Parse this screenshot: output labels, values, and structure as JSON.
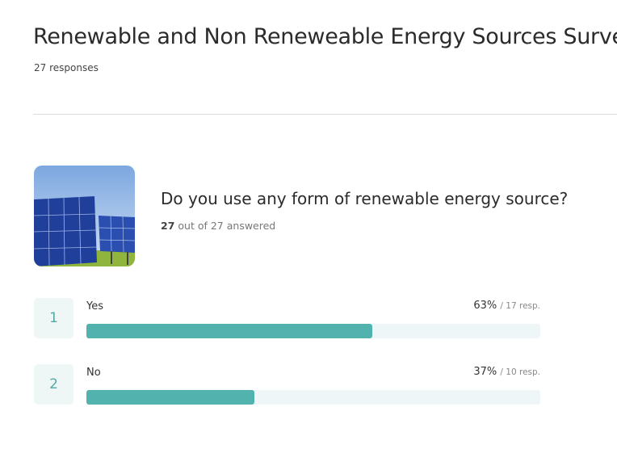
{
  "header": {
    "title": "Renewable and Non Reneweable Energy Sources Survey",
    "responses": "27 responses"
  },
  "question": {
    "text": "Do you use any form of renewable energy source?",
    "answered_count": 27,
    "answered_rest": "out of 27 answered",
    "options": [
      {
        "index": 1,
        "label": "Yes",
        "percent": 63,
        "percent_label": "63%",
        "responses_label": "/ 17 resp."
      },
      {
        "index": 2,
        "label": "No",
        "percent": 37,
        "percent_label": "37%",
        "responses_label": "/ 10 resp."
      }
    ]
  }
}
